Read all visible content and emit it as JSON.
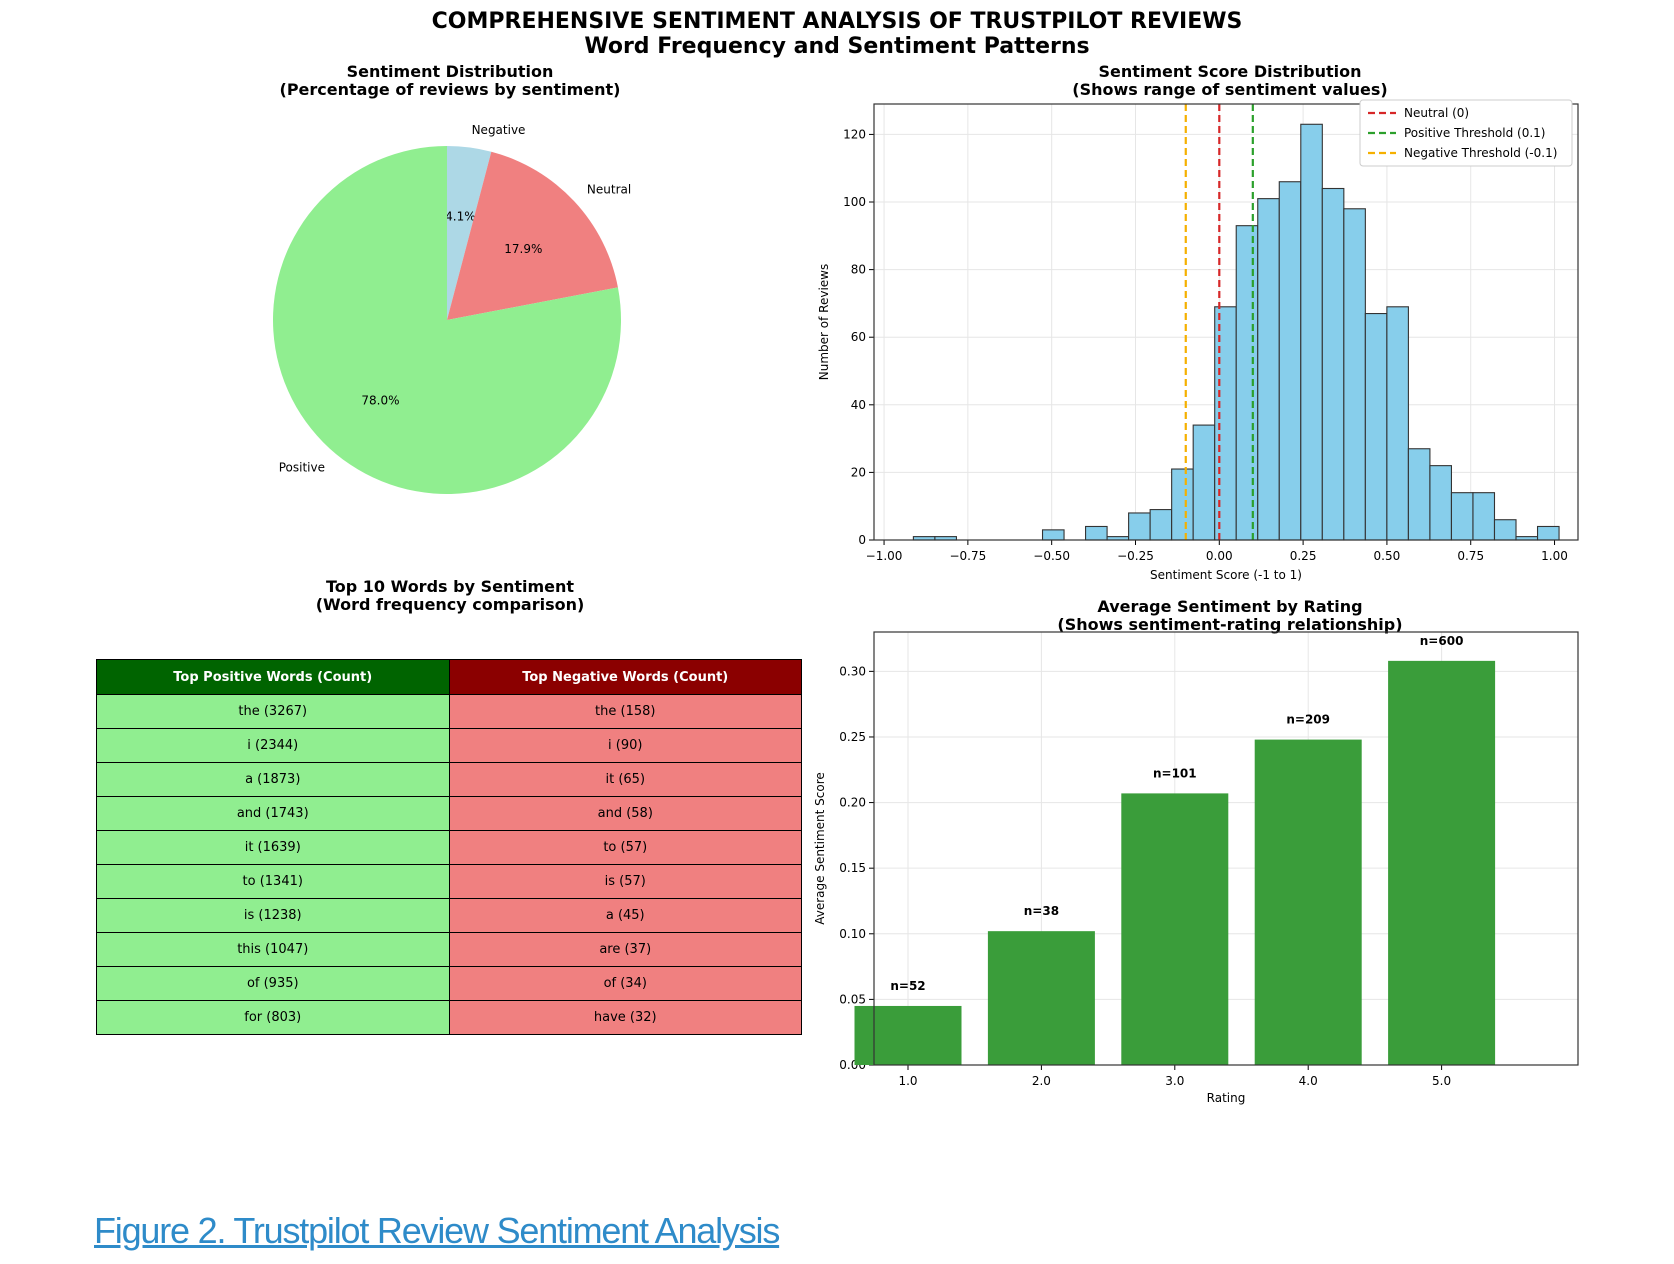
{
  "figure": {
    "title": "COMPREHENSIVE SENTIMENT ANALYSIS OF TRUSTPILOT REVIEWS",
    "subtitle": "Word Frequency and Sentiment Patterns",
    "caption": "Figure 2. Trustpilot Review Sentiment Analysis"
  },
  "chart_data": [
    {
      "type": "pie",
      "title": "Sentiment Distribution",
      "subtitle": "(Percentage of reviews by sentiment)",
      "labels": [
        "Negative",
        "Neutral",
        "Positive"
      ],
      "values": [
        4.1,
        17.9,
        78.0
      ],
      "value_labels": [
        "4.1%",
        "17.9%",
        "78.0%"
      ],
      "colors": [
        "#add8e6",
        "#f08080",
        "#90ee90"
      ],
      "start_angle_deg": 90,
      "direction": "clockwise"
    },
    {
      "type": "bar",
      "subtype": "histogram",
      "title": "Sentiment Score Distribution",
      "subtitle": "(Shows range of sentiment values)",
      "xlabel": "Sentiment Score (-1 to 1)",
      "ylabel": "Number of Reviews",
      "xlim": [
        -1.03,
        1.07
      ],
      "ylim": [
        0,
        129
      ],
      "xticks": [
        "−1.00",
        "−0.75",
        "−0.50",
        "−0.25",
        "0.00",
        "0.25",
        "0.50",
        "0.75",
        "1.00"
      ],
      "xtick_values": [
        -1.0,
        -0.75,
        -0.5,
        -0.25,
        0.0,
        0.25,
        0.5,
        0.75,
        1.0
      ],
      "yticks": [
        0,
        20,
        40,
        60,
        80,
        100,
        120
      ],
      "bin_start": -0.9125,
      "bin_width": 0.0642,
      "counts": [
        1,
        1,
        0,
        0,
        0,
        0,
        3,
        0,
        4,
        1,
        8,
        9,
        21,
        34,
        69,
        93,
        101,
        106,
        123,
        104,
        98,
        67,
        69,
        27,
        22,
        14,
        14,
        6,
        1,
        4
      ],
      "bar_color": "#87ceeb",
      "reference_lines": [
        {
          "label": "Neutral (0)",
          "x": 0.0,
          "color": "#d62728"
        },
        {
          "label": "Positive Threshold (0.1)",
          "x": 0.1,
          "color": "#2ca02c"
        },
        {
          "label": "Negative Threshold (-0.1)",
          "x": -0.1,
          "color": "#f5b000"
        }
      ],
      "legend_position": "top-right",
      "grid": true
    },
    {
      "type": "table",
      "title": "Top 10 Words by Sentiment",
      "subtitle": "(Word frequency comparison)",
      "columns": [
        "Top Positive Words (Count)",
        "Top Negative Words (Count)"
      ],
      "header_colors": [
        "#006400",
        "#8b0000"
      ],
      "cell_colors": [
        "#90ee90",
        "#f08080"
      ],
      "rows": [
        [
          "the (3267)",
          "the (158)"
        ],
        [
          "i (2344)",
          "i (90)"
        ],
        [
          "a (1873)",
          "it (65)"
        ],
        [
          "and (1743)",
          "and (58)"
        ],
        [
          "it (1639)",
          "to (57)"
        ],
        [
          "to (1341)",
          "is (57)"
        ],
        [
          "is (1238)",
          "a (45)"
        ],
        [
          "this (1047)",
          "are (37)"
        ],
        [
          "of (935)",
          "of (34)"
        ],
        [
          "for (803)",
          "have (32)"
        ]
      ]
    },
    {
      "type": "bar",
      "title": "Average Sentiment by Rating",
      "subtitle": "(Shows sentiment-rating relationship)",
      "xlabel": "Rating",
      "ylabel": "Average Sentiment Score",
      "categories": [
        "1.0",
        "2.0",
        "3.0",
        "4.0",
        "5.0"
      ],
      "values": [
        0.045,
        0.102,
        0.207,
        0.248,
        0.308
      ],
      "annotations": [
        "n=52",
        "n=38",
        "n=101",
        "n=209",
        "n=600"
      ],
      "ylim": [
        0,
        0.33
      ],
      "yticks": [
        "0.00",
        "0.05",
        "0.10",
        "0.15",
        "0.20",
        "0.25",
        "0.30"
      ],
      "ytick_values": [
        0,
        0.05,
        0.1,
        0.15,
        0.2,
        0.25,
        0.3
      ],
      "bar_color": "#3a9d3a",
      "grid": true
    }
  ]
}
